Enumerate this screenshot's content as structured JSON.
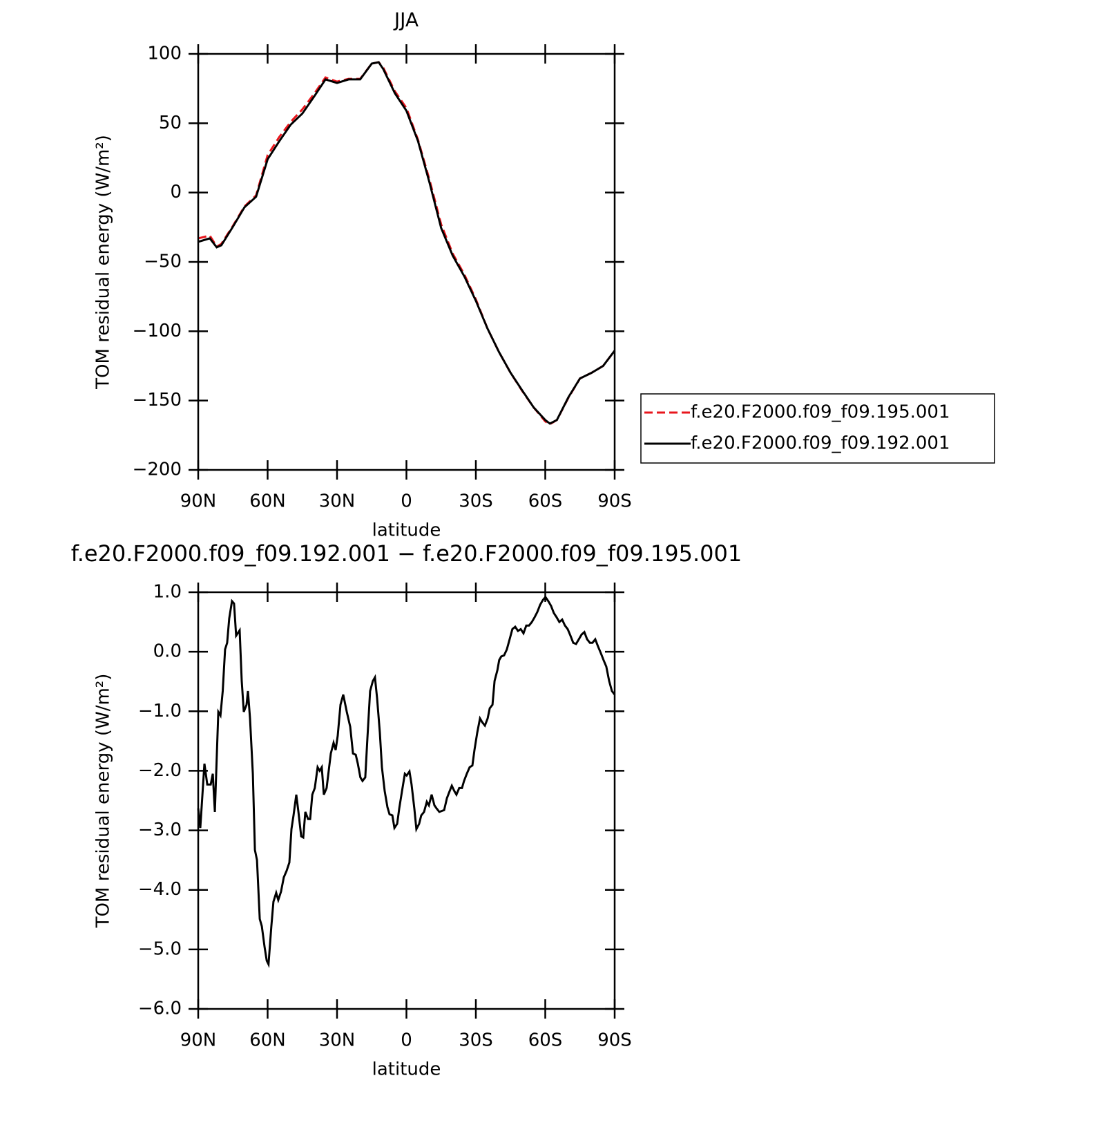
{
  "chart_data": [
    {
      "type": "line",
      "title": "JJA",
      "xlabel": "latitude",
      "ylabel": "TOM residual energy (W/m²)",
      "x": [
        90,
        85,
        82,
        80,
        75,
        70,
        65,
        60,
        55,
        50,
        45,
        40,
        35,
        30,
        25,
        20,
        15,
        12,
        10,
        5,
        0,
        -5,
        -10,
        -15,
        -20,
        -25,
        -30,
        -35,
        -40,
        -45,
        -50,
        -55,
        -60,
        -62,
        -65,
        -70,
        -75,
        -80,
        -85,
        -90
      ],
      "series": [
        {
          "name": "f.e20.F2000.f09_f09.195.001",
          "color": "#e8161c",
          "linestyle": "dashed",
          "values": [
            -33,
            -31,
            -39,
            -37,
            -24,
            -10,
            -2,
            27,
            40,
            51,
            60,
            71,
            83,
            80,
            82,
            82,
            93,
            94,
            90,
            73,
            61,
            38,
            9,
            -23,
            -44,
            -59,
            -77,
            -98,
            -115,
            -130,
            -143,
            -155,
            -165,
            -167,
            -164,
            -148,
            -134,
            -130,
            -125,
            -114
          ]
        },
        {
          "name": "f.e20.F2000.f09_f09.192.001",
          "color": "#000000",
          "linestyle": "solid",
          "values": [
            -35.5,
            -33,
            -39.5,
            -38,
            -24.6,
            -10.6,
            -3,
            24,
            37,
            49,
            57,
            69,
            81.6,
            79,
            81.6,
            81.6,
            93,
            94,
            89,
            71.6,
            59,
            37,
            7,
            -25.6,
            -45.5,
            -60.4,
            -78,
            -98,
            -115,
            -130,
            -142.6,
            -155,
            -164,
            -166.6,
            -164,
            -147.6,
            -134,
            -130,
            -125,
            -114
          ]
        }
      ],
      "xlim": [
        90,
        -90
      ],
      "xticks": [
        {
          "value": 90,
          "label": "90N"
        },
        {
          "value": 60,
          "label": "60N"
        },
        {
          "value": 30,
          "label": "30N"
        },
        0,
        {
          "value": -30,
          "label": "30S"
        },
        {
          "value": -60,
          "label": "60S"
        },
        {
          "value": -90,
          "label": "90S"
        }
      ],
      "ylim": [
        -200,
        100
      ],
      "yticks": [
        {
          "value": -200,
          "label": "−200"
        },
        {
          "value": -150,
          "label": "−150"
        },
        {
          "value": -100,
          "label": "−100"
        },
        {
          "value": -50,
          "label": "−50"
        },
        0,
        50,
        100
      ],
      "legend": "outside-right"
    },
    {
      "type": "line",
      "title": "f.e20.F2000.f09_f09.192.001 − f.e20.F2000.f09_f09.195.001",
      "xlabel": "latitude",
      "ylabel": "TOM residual energy (W/m²)",
      "x": [
        90,
        89.1,
        87.3,
        86.1,
        84.6,
        83.7,
        82.8,
        81.3,
        80.4,
        79.4,
        78.4,
        77.5,
        76.6,
        75.4,
        74.5,
        73.6,
        72.1,
        71.2,
        70.3,
        69.1,
        68.5,
        67.6,
        66.4,
        65.5,
        64.6,
        63.4,
        62.5,
        61.3,
        60.4,
        59.6,
        58.4,
        57.5,
        56.3,
        55.4,
        54.2,
        53.0,
        51.8,
        50.6,
        49.7,
        48.8,
        47.6,
        46.7,
        45.5,
        44.6,
        43.7,
        42.5,
        41.6,
        40.7,
        39.6,
        38.4,
        37.5,
        36.6,
        35.7,
        34.5,
        32.7,
        31.5,
        30.6,
        29.7,
        28.5,
        27.3,
        25.8,
        24.3,
        23.1,
        21.9,
        21.0,
        19.9,
        19.0,
        17.8,
        16.9,
        15.7,
        14.5,
        13.6,
        12.7,
        11.5,
        10.6,
        9.4,
        8.2,
        7.3,
        6.1,
        5.2,
        4.0,
        3.1,
        1.9,
        0.7,
        -0.1,
        -1.3,
        -2.2,
        -3.4,
        -4.3,
        -5.5,
        -6.4,
        -7.6,
        -8.8,
        -9.7,
        -10.9,
        -12.1,
        -13.0,
        -14.2,
        -16.3,
        -17.5,
        -18.7,
        -19.6,
        -20.7,
        -21.6,
        -22.8,
        -24.0,
        -24.9,
        -26.1,
        -27.3,
        -28.5,
        -29.4,
        -30.6,
        -31.8,
        -32.7,
        -33.9,
        -35.1,
        -36.0,
        -37.2,
        -38.1,
        -39.3,
        -40.1,
        -41.0,
        -42.2,
        -43.4,
        -44.6,
        -45.8,
        -47.0,
        -48.2,
        -49.4,
        -50.6,
        -51.8,
        -53.0,
        -54.2,
        -55.4,
        -56.6,
        -57.8,
        -59.0,
        -60.1,
        -61.3,
        -62.5,
        -63.7,
        -64.9,
        -66.1,
        -67.3,
        -68.5,
        -69.7,
        -70.9,
        -72.1,
        -73.3,
        -74.5,
        -75.7,
        -76.9,
        -78.1,
        -79.3,
        -80.4,
        -81.6,
        -82.8,
        -84.0,
        -85.2,
        -86.4,
        -87.6,
        -88.8,
        -90.0
      ],
      "series": [
        {
          "color": "#000000",
          "linestyle": "solid",
          "values": [
            -2.63,
            -2.96,
            -1.88,
            -2.23,
            -2.23,
            -2.05,
            -2.69,
            -1.01,
            -1.07,
            -0.66,
            0.04,
            0.15,
            0.56,
            0.85,
            0.81,
            0.27,
            0.36,
            -0.49,
            -1.01,
            -0.89,
            -0.66,
            -1.12,
            -2.05,
            -3.33,
            -3.5,
            -4.49,
            -4.61,
            -4.96,
            -5.19,
            -5.25,
            -4.61,
            -4.2,
            -4.05,
            -4.17,
            -4.03,
            -3.79,
            -3.68,
            -3.54,
            -2.98,
            -2.75,
            -2.4,
            -2.69,
            -3.1,
            -3.12,
            -2.69,
            -2.81,
            -2.81,
            -2.4,
            -2.29,
            -1.94,
            -2.0,
            -1.94,
            -2.4,
            -2.29,
            -1.71,
            -1.53,
            -1.65,
            -1.41,
            -0.89,
            -0.72,
            -1.01,
            -1.26,
            -1.71,
            -1.73,
            -1.88,
            -2.11,
            -2.17,
            -2.11,
            -1.47,
            -0.66,
            -0.49,
            -0.43,
            -0.78,
            -1.36,
            -1.94,
            -2.34,
            -2.61,
            -2.73,
            -2.75,
            -2.96,
            -2.89,
            -2.63,
            -2.34,
            -2.05,
            -2.08,
            -2.01,
            -2.23,
            -2.63,
            -2.98,
            -2.89,
            -2.75,
            -2.69,
            -2.52,
            -2.58,
            -2.4,
            -2.58,
            -2.63,
            -2.69,
            -2.66,
            -2.46,
            -2.34,
            -2.25,
            -2.34,
            -2.4,
            -2.29,
            -2.29,
            -2.17,
            -2.05,
            -1.94,
            -1.91,
            -1.65,
            -1.36,
            -1.12,
            -1.18,
            -1.24,
            -1.12,
            -0.95,
            -0.89,
            -0.49,
            -0.31,
            -0.14,
            -0.08,
            -0.06,
            0.04,
            0.21,
            0.38,
            0.42,
            0.35,
            0.38,
            0.31,
            0.44,
            0.44,
            0.5,
            0.58,
            0.67,
            0.79,
            0.87,
            0.92,
            0.85,
            0.77,
            0.65,
            0.58,
            0.5,
            0.54,
            0.44,
            0.38,
            0.27,
            0.15,
            0.13,
            0.21,
            0.29,
            0.33,
            0.21,
            0.15,
            0.15,
            0.21,
            0.09,
            -0.02,
            -0.14,
            -0.25,
            -0.49,
            -0.66,
            -0.72
          ]
        }
      ],
      "xlim": [
        90,
        -90
      ],
      "xticks": [
        {
          "value": 90,
          "label": "90N"
        },
        {
          "value": 60,
          "label": "60N"
        },
        {
          "value": 30,
          "label": "30N"
        },
        0,
        {
          "value": -30,
          "label": "30S"
        },
        {
          "value": -60,
          "label": "60S"
        },
        {
          "value": -90,
          "label": "90S"
        }
      ],
      "ylim": [
        -6,
        1
      ],
      "yticks": [
        {
          "value": -6,
          "label": "−6.0"
        },
        {
          "value": -5,
          "label": "−5.0"
        },
        {
          "value": -4,
          "label": "−4.0"
        },
        {
          "value": -3,
          "label": "−3.0"
        },
        {
          "value": -2,
          "label": "−2.0"
        },
        {
          "value": -1,
          "label": "−1.0"
        },
        {
          "value": 0,
          "label": "0.0"
        },
        {
          "value": 1,
          "label": "1.0"
        }
      ]
    }
  ]
}
